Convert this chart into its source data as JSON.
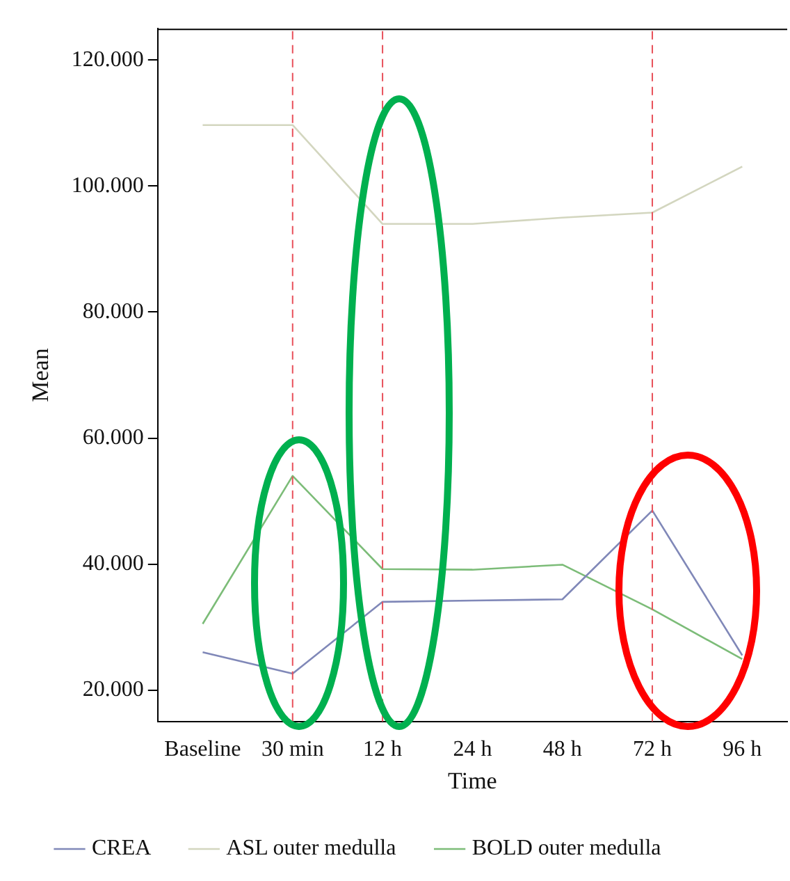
{
  "chart_data": {
    "type": "line",
    "xlabel": "Time",
    "ylabel": "Mean",
    "categories": [
      "Baseline",
      "30 min",
      "12 h",
      "24 h",
      "48 h",
      "72 h",
      "96 h"
    ],
    "series": [
      {
        "name": "CREA",
        "color": "#8088b8",
        "values": [
          26.0,
          22.6,
          34.0,
          34.2,
          34.4,
          48.5,
          25.5
        ]
      },
      {
        "name": "ASL outer medulla",
        "color": "#d3d6bf",
        "values": [
          109.7,
          109.7,
          94.0,
          94.0,
          95.0,
          95.8,
          103.1
        ]
      },
      {
        "name": "BOLD outer medulla",
        "color": "#7cbc78",
        "values": [
          30.5,
          54.0,
          39.2,
          39.1,
          39.9,
          32.8,
          24.9
        ]
      }
    ],
    "ylim": [
      15,
      125
    ],
    "yticks": [
      {
        "value": 20,
        "label": "20.000"
      },
      {
        "value": 40,
        "label": "40.000"
      },
      {
        "value": 60,
        "label": "60.000"
      },
      {
        "value": 80,
        "label": "80.000"
      },
      {
        "value": 100,
        "label": "100.000"
      },
      {
        "value": 120,
        "label": "120.000"
      }
    ],
    "ref_lines": [
      {
        "axis": "x",
        "value": "30 min",
        "color": "#e8505a",
        "line_style": "dashed"
      },
      {
        "axis": "x",
        "value": "12 h",
        "color": "#e8505a",
        "line_style": "dashed"
      },
      {
        "axis": "x",
        "value": "72 h",
        "color": "#e8505a",
        "line_style": "dashed"
      }
    ],
    "grid": false,
    "legend": "bottom",
    "marker": "none",
    "line_style": "solid"
  }
}
